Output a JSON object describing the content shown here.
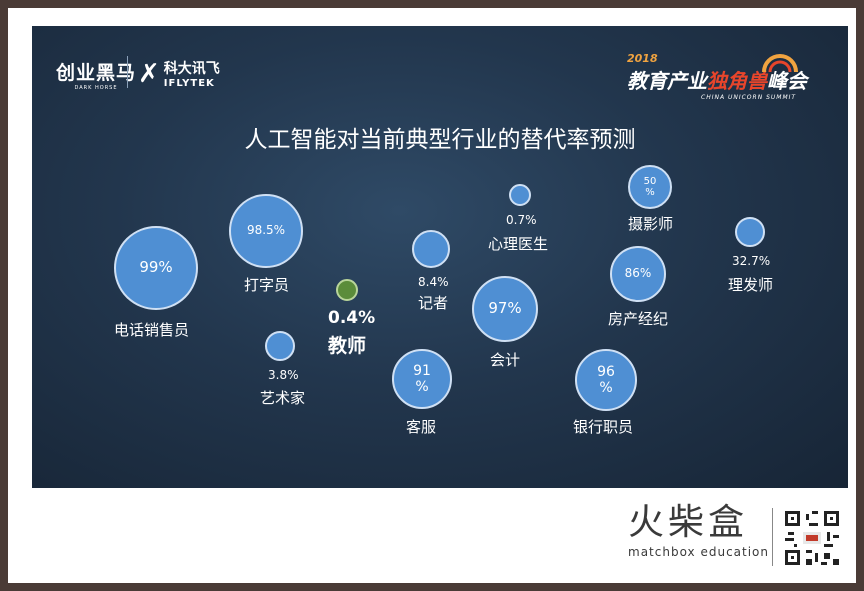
{
  "header": {
    "dark_horse_logo_cn": "创业黑马",
    "dark_horse_logo_en": "DARK HORSE",
    "iflytek_logo_cn": "科大讯飞",
    "iflytek_logo_en": "IFLYTEK",
    "summit_year": "2018",
    "summit_title_a": "教育产业",
    "summit_title_b": "独角兽",
    "summit_title_c": "峰会",
    "summit_en": "CHINA UNICORN SUMMIT"
  },
  "title": "人工智能对当前典型行业的替代率预测",
  "chart_data": {
    "type": "bubble",
    "title": "人工智能对当前典型行业的替代率预测",
    "points": [
      {
        "category": "电话销售员",
        "value_label": "99%",
        "value": 99
      },
      {
        "category": "打字员",
        "value_label": "98.5%",
        "value": 98.5
      },
      {
        "category": "教师",
        "value_label": "0.4%",
        "value": 0.4
      },
      {
        "category": "艺术家",
        "value_label": "3.8%",
        "value": 3.8
      },
      {
        "category": "记者",
        "value_label": "8.4%",
        "value": 8.4
      },
      {
        "category": "客服",
        "value_label": "91%",
        "value": 91
      },
      {
        "category": "心理医生",
        "value_label": "0.7%",
        "value": 0.7
      },
      {
        "category": "会计",
        "value_label": "97%",
        "value": 97
      },
      {
        "category": "摄影师",
        "value_label": "50%",
        "value": 50
      },
      {
        "category": "房产经纪",
        "value_label": "86%",
        "value": 86
      },
      {
        "category": "银行职员",
        "value_label": "96%",
        "value": 96
      },
      {
        "category": "理发师",
        "value_label": "32.7%",
        "value": 32.7
      }
    ],
    "bubble_color": "#4f8fd3",
    "highlight_color": "#5b8c3a"
  },
  "labels": {
    "b91": "91\n%",
    "b96": "96\n%",
    "b50": "50\n%"
  },
  "footer": {
    "brand_cn": "火柴盒",
    "brand_en": "matchbox education"
  }
}
